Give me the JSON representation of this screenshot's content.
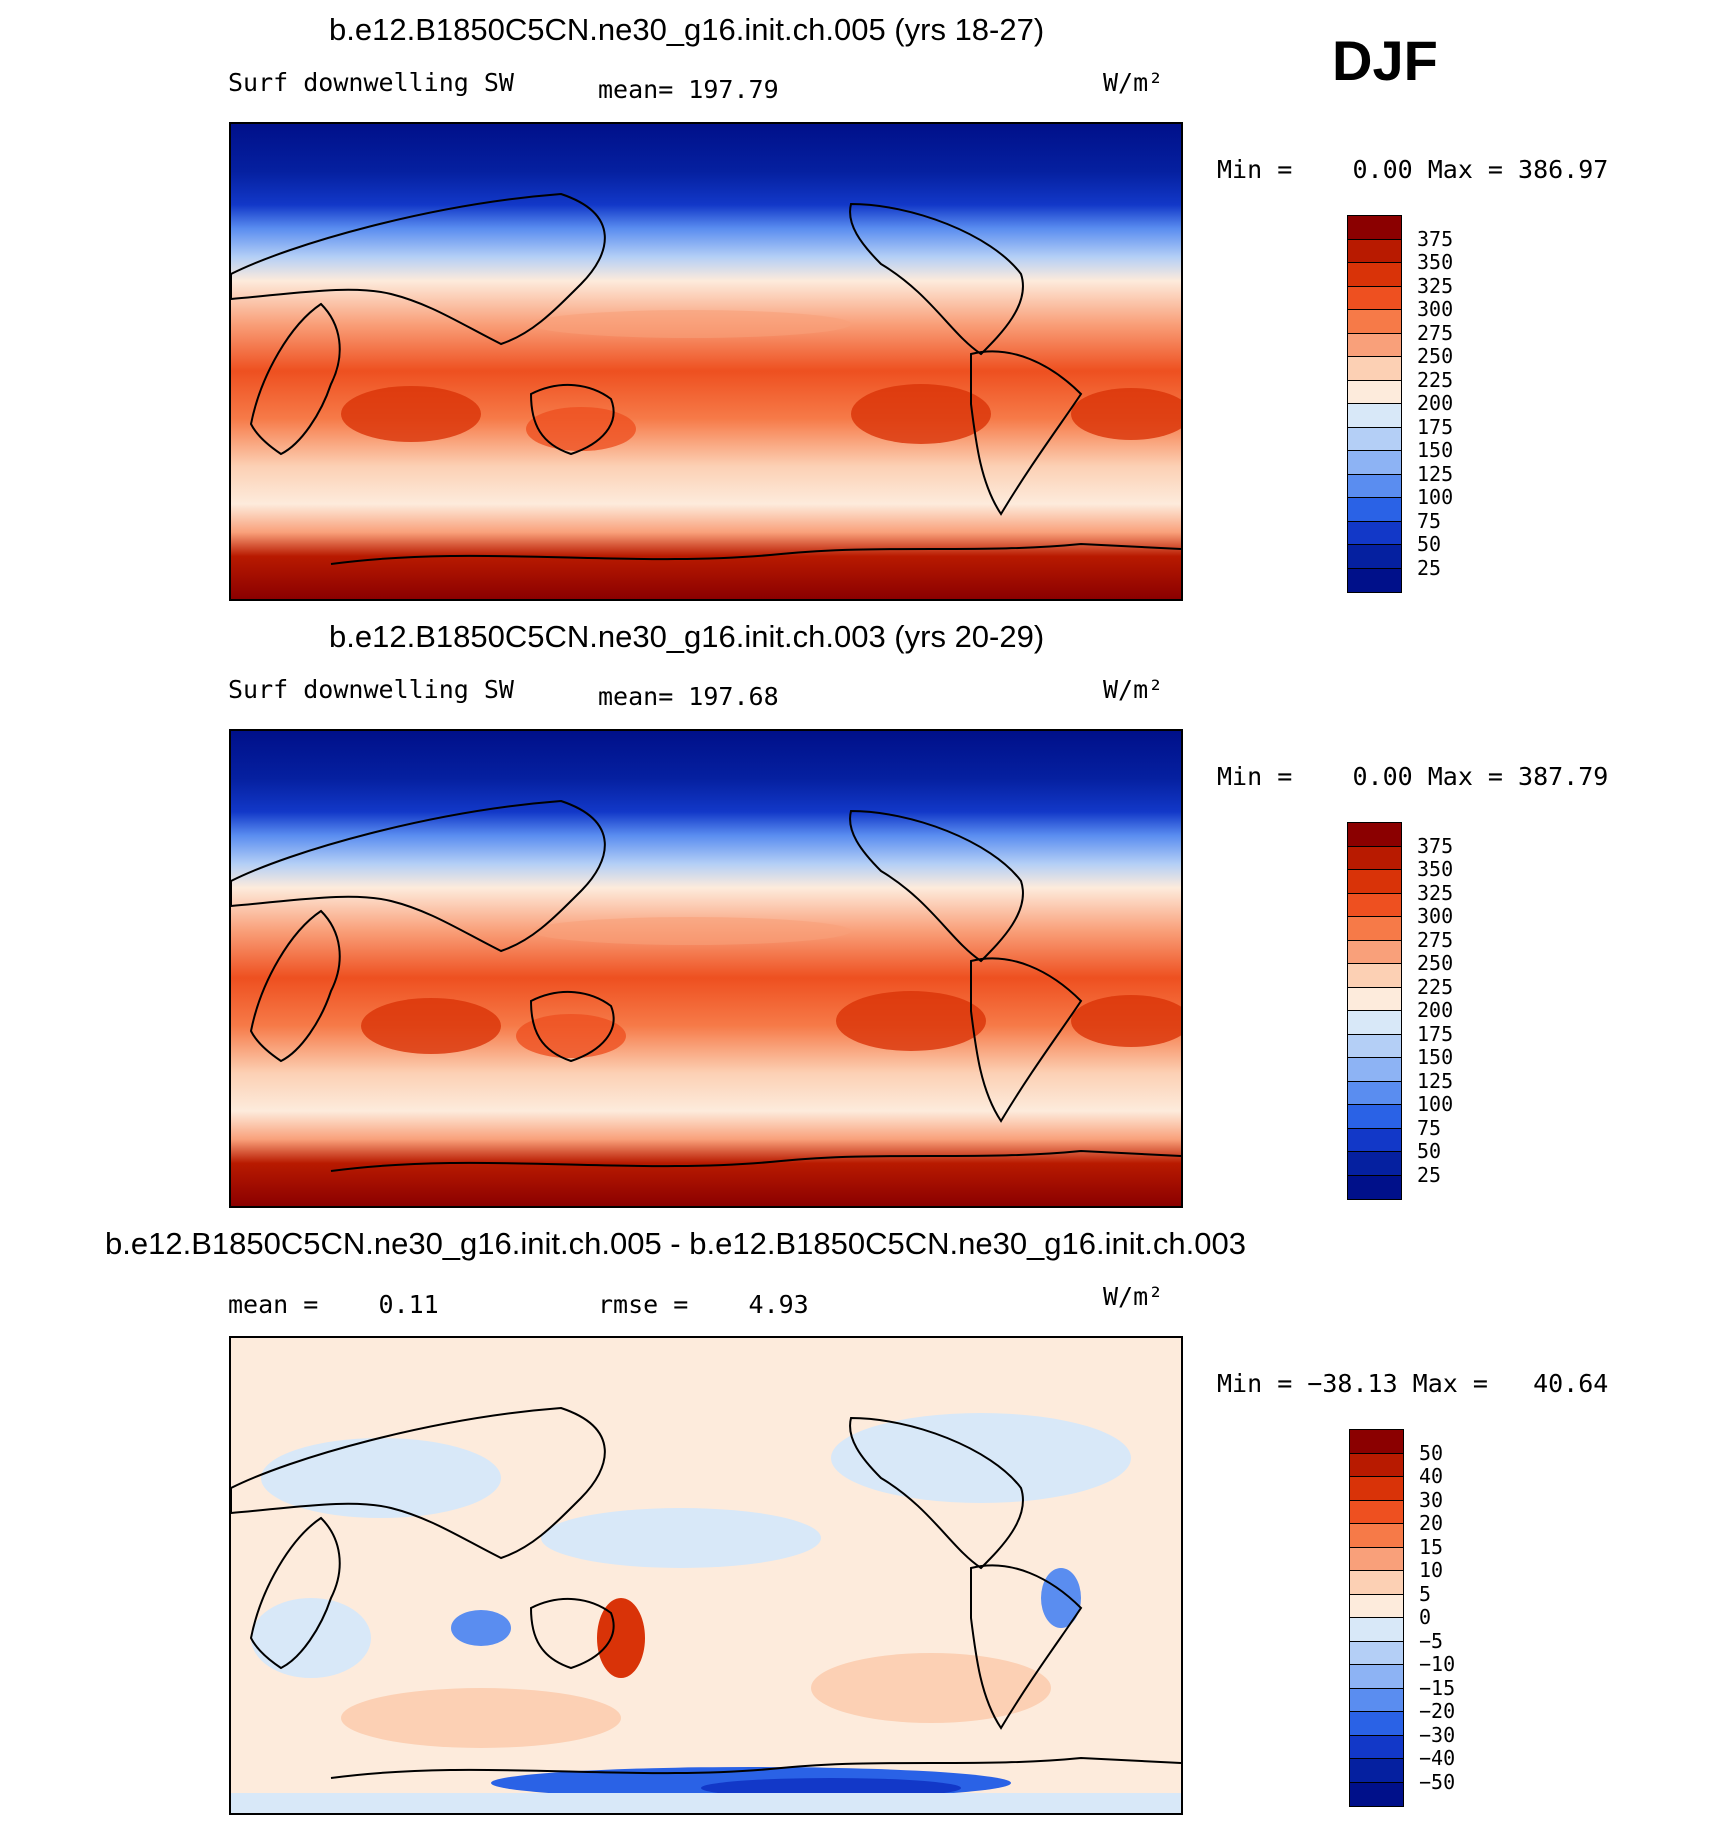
{
  "season": "DJF",
  "units": "W/m²",
  "panels": [
    {
      "title": "b.e12.B1850C5CN.ne30_g16.init.ch.005 (yrs 18-27)",
      "left_label": "Surf downwelling SW",
      "stat_text": "mean= 197.79",
      "units": "W/m²",
      "minmax_text": "Min =    0.00 Max = 386.97",
      "kind": "abs"
    },
    {
      "title": "b.e12.B1850C5CN.ne30_g16.init.ch.003 (yrs 20-29)",
      "left_label": "Surf downwelling SW",
      "stat_text": "mean= 197.68",
      "units": "W/m²",
      "minmax_text": "Min =    0.00 Max = 387.79",
      "kind": "abs"
    },
    {
      "title": "b.e12.B1850C5CN.ne30_g16.init.ch.005 - b.e12.B1850C5CN.ne30_g16.init.ch.003",
      "mean_text": "mean =    0.11",
      "rmse_text": "rmse =    4.93",
      "units": "W/m²",
      "minmax_text": "Min = −38.13 Max =   40.64",
      "kind": "diff"
    }
  ],
  "colorbars": {
    "abs": {
      "labels": [
        "375",
        "350",
        "325",
        "300",
        "275",
        "250",
        "225",
        "200",
        "175",
        "150",
        "125",
        "100",
        "75",
        "50",
        "25"
      ],
      "colors": [
        "#8b0000",
        "#b81a00",
        "#d93308",
        "#ee5020",
        "#f67a48",
        "#f9a07a",
        "#fcd0b4",
        "#fdebdc",
        "#d8e8f8",
        "#b4cff6",
        "#8db3f4",
        "#5a8df0",
        "#2a62e6",
        "#1238c8",
        "#0520a0",
        "#00108a"
      ]
    },
    "diff": {
      "labels": [
        "50",
        "40",
        "30",
        "20",
        "15",
        "10",
        "5",
        "0",
        "−5",
        "−10",
        "−15",
        "−20",
        "−30",
        "−40",
        "−50"
      ],
      "colors": [
        "#8b0000",
        "#b81a00",
        "#d93308",
        "#ee5020",
        "#f67a48",
        "#f9a07a",
        "#fcd0b4",
        "#fdebdc",
        "#d8e8f8",
        "#b4cff6",
        "#8db3f4",
        "#5a8df0",
        "#2a62e6",
        "#1238c8",
        "#0520a0",
        "#00108a"
      ]
    }
  }
}
